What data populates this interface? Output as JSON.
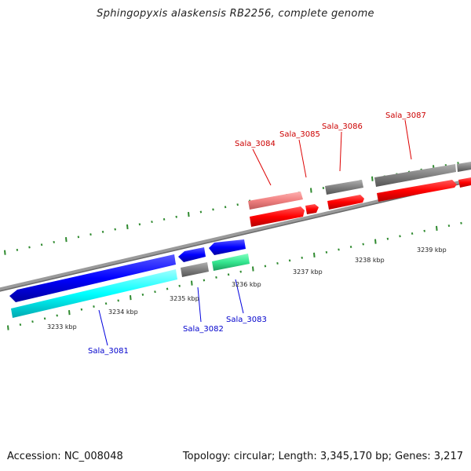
{
  "title": "Sphingopyxis alaskensis RB2256, complete genome",
  "footer": {
    "accession": "Accession: NC_008048",
    "summary": "Topology: circular; Length: 3,345,170 bp; Genes: 3,217"
  },
  "colors": {
    "backbone": "#808080",
    "tick": "#2f8a2f",
    "forward_cds": "#ff0000",
    "forward_gene": "#ff8080",
    "reverse_cds": "#0000ff",
    "reverse_gene": "#00ffff",
    "reverse_misc": "#33e58f",
    "other": "#808080",
    "label_forward": "#cc0000",
    "label_reverse": "#0000cc"
  },
  "genes": {
    "forward": [
      {
        "label": "Sala_3084"
      },
      {
        "label": "Sala_3085"
      },
      {
        "label": "Sala_3086"
      },
      {
        "label": "Sala_3087"
      }
    ],
    "reverse": [
      {
        "label": "Sala_3081"
      },
      {
        "label": "Sala_3082"
      },
      {
        "label": "Sala_3083"
      }
    ]
  },
  "kbp_ticks": [
    "3233 kbp",
    "3234 kbp",
    "3235 kbp",
    "3236 kbp",
    "3237 kbp",
    "3238 kbp",
    "3239 kbp"
  ]
}
